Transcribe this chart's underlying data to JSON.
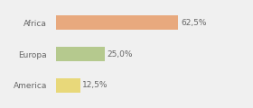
{
  "categories": [
    "Africa",
    "Europa",
    "America"
  ],
  "values": [
    62.5,
    25.0,
    12.5
  ],
  "labels": [
    "62,5%",
    "25,0%",
    "12,5%"
  ],
  "bar_colors": [
    "#e8a97e",
    "#b5c98e",
    "#e8d87a"
  ],
  "background_color": "#f0f0f0",
  "xlim": [
    0,
    85
  ],
  "label_fontsize": 6.5,
  "tick_fontsize": 6.5
}
